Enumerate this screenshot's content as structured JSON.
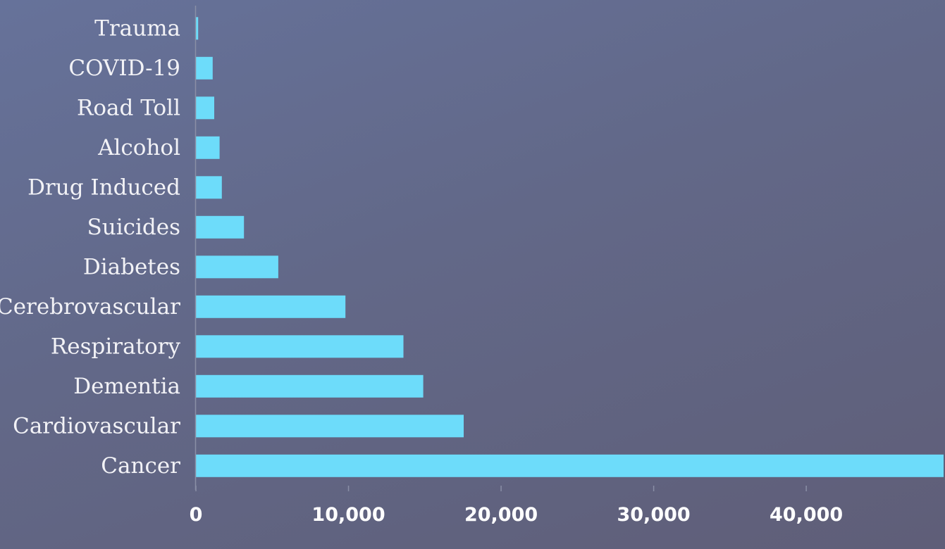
{
  "chart_data": {
    "type": "bar",
    "orientation": "horizontal",
    "categories": [
      "Trauma",
      "COVID-19",
      "Road Toll",
      "Alcohol",
      "Drug Induced",
      "Suicides",
      "Diabetes",
      "Cerebrovascular",
      "Respiratory",
      "Dementia",
      "Cardiovascular",
      "Cancer"
    ],
    "values": [
      150,
      1100,
      1200,
      1550,
      1700,
      3150,
      5400,
      9800,
      13600,
      14900,
      17550,
      49000
    ],
    "x_ticks": [
      0,
      10000,
      20000,
      30000,
      40000
    ],
    "x_tick_labels": [
      "0",
      "10,000",
      "20,000",
      "30,000",
      "40,000"
    ],
    "xlim": [
      0,
      49000
    ],
    "bar_color": "#6ddcfa",
    "axis_color": "#8a8fa6",
    "grid": false,
    "legend": false,
    "title": "",
    "xlabel": "",
    "ylabel": ""
  }
}
